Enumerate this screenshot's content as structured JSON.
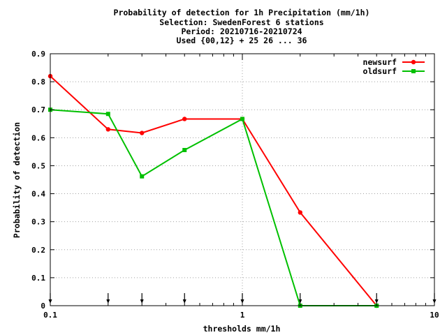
{
  "chart_data": {
    "type": "line",
    "title_lines": [
      "Probability of detection  for 1h Precipitation (mm/1h)",
      "Selection: SwedenForest      6 stations",
      "Period: 20210716-20210724",
      "Used {00,12} + 25 26 ... 36"
    ],
    "xlabel": "thresholds mm/1h",
    "ylabel": "Probability of detection",
    "x_scale": "log",
    "xlim": [
      0.1,
      10
    ],
    "ylim": [
      0,
      0.9
    ],
    "x_ticks": [
      {
        "value": 0.1,
        "label": "0.1"
      },
      {
        "value": 1,
        "label": "1"
      },
      {
        "value": 10,
        "label": "10"
      }
    ],
    "y_ticks": [
      {
        "value": 0,
        "label": "0"
      },
      {
        "value": 0.1,
        "label": "0.1"
      },
      {
        "value": 0.2,
        "label": "0.2"
      },
      {
        "value": 0.3,
        "label": "0.3"
      },
      {
        "value": 0.4,
        "label": "0.4"
      },
      {
        "value": 0.5,
        "label": "0.5"
      },
      {
        "value": 0.6,
        "label": "0.6"
      },
      {
        "value": 0.7,
        "label": "0.7"
      },
      {
        "value": 0.8,
        "label": "0.8"
      },
      {
        "value": 0.9,
        "label": "0.9"
      }
    ],
    "grid": true,
    "legend_position": "top-right",
    "threshold_markers": [
      0.1,
      0.2,
      0.3,
      0.5,
      1,
      2,
      5,
      10
    ],
    "series": [
      {
        "name": "newsurf",
        "color": "#ff0000",
        "x": [
          0.1,
          0.2,
          0.3,
          0.5,
          1,
          2,
          5
        ],
        "y": [
          0.82,
          0.63,
          0.617,
          0.667,
          0.667,
          0.333,
          0.0
        ]
      },
      {
        "name": "oldsurf",
        "color": "#00c000",
        "x": [
          0.1,
          0.2,
          0.3,
          0.5,
          1,
          2,
          5
        ],
        "y": [
          0.7,
          0.685,
          0.462,
          0.556,
          0.667,
          0.0,
          0.0
        ]
      }
    ]
  }
}
